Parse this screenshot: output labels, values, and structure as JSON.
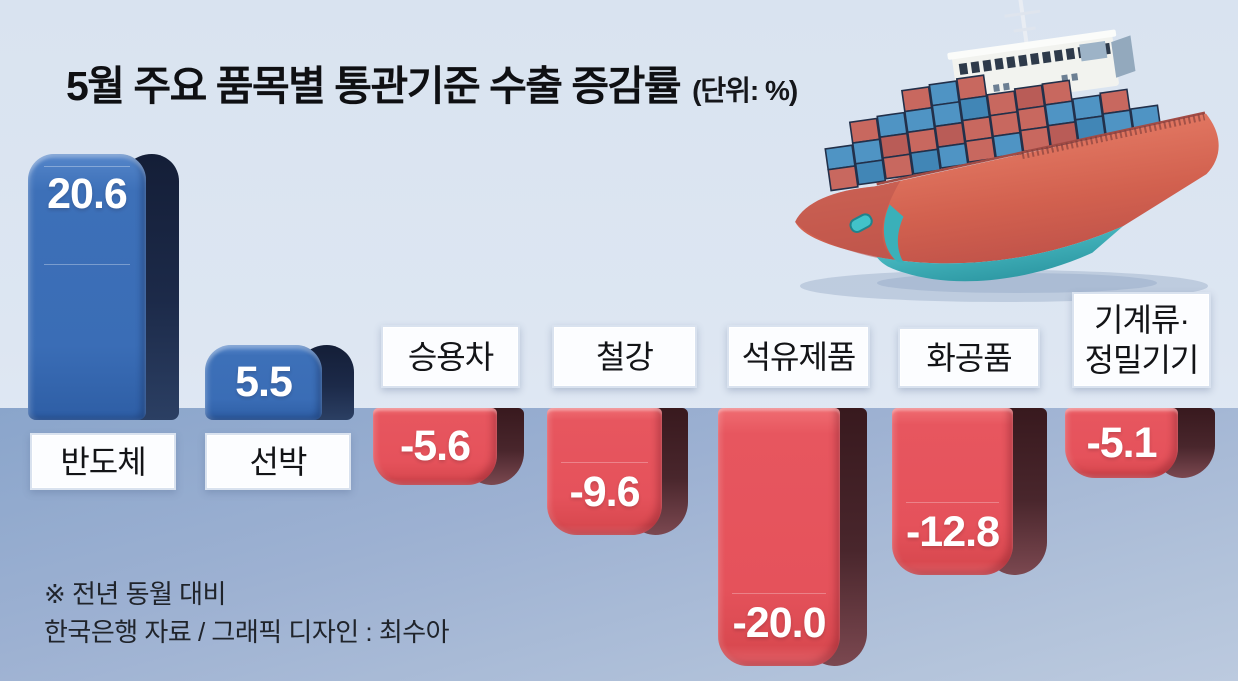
{
  "title": {
    "text": "5월 주요 품목별 통관기준 수출 증감률",
    "unit": "(단위: %)"
  },
  "chart_data": {
    "type": "bar",
    "orientation": "vertical",
    "unit": "%",
    "title": "5월 주요 품목별 통관기준 수출 증감률",
    "comparison_note": "전년 동월 대비",
    "categories": [
      "반도체",
      "선박",
      "승용차",
      "철강",
      "석유제품",
      "화공품",
      "기계류·정밀기기"
    ],
    "values": [
      20.6,
      5.5,
      -5.6,
      -9.6,
      -20.0,
      -12.8,
      -5.1
    ],
    "positive_color": "#3a6db6",
    "negative_color": "#e5525b",
    "bars": [
      {
        "label_line1": "반도체",
        "label_line2": "",
        "value": 20.6,
        "display": "20.6"
      },
      {
        "label_line1": "선박",
        "label_line2": "",
        "value": 5.5,
        "display": "5.5"
      },
      {
        "label_line1": "승용차",
        "label_line2": "",
        "value": -5.6,
        "display": "-5.6"
      },
      {
        "label_line1": "철강",
        "label_line2": "",
        "value": -9.6,
        "display": "-9.6"
      },
      {
        "label_line1": "석유제품",
        "label_line2": "",
        "value": -20.0,
        "display": "-20.0"
      },
      {
        "label_line1": "화공품",
        "label_line2": "",
        "value": -12.8,
        "display": "-12.8"
      },
      {
        "label_line1": "기계류·",
        "label_line2": "정밀기기",
        "value": -5.1,
        "display": "-5.1"
      }
    ]
  },
  "footnote": "※ 전년 동월 대비",
  "source": "한국은행 자료 / 그래픽 디자인 : 최수아",
  "illustration": {
    "name": "container-ship"
  }
}
